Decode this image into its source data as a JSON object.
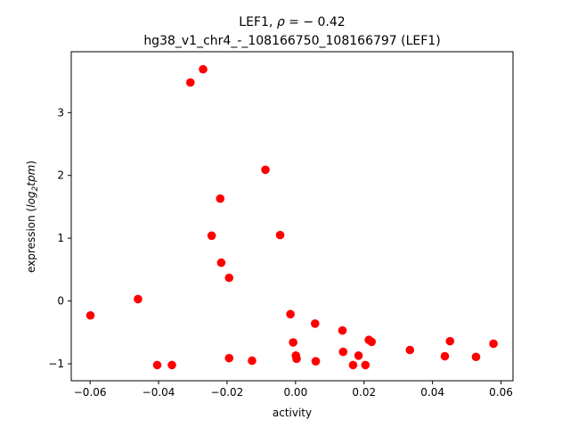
{
  "chart_data": {
    "type": "scatter",
    "title_line1_prefix": "LEF1, ",
    "title_line1_rho": "ρ",
    "title_line1_suffix": " = − 0.42",
    "title_line2": "hg38_v1_chr4_-_108166750_108166797 (LEF1)",
    "xlabel": "activity",
    "ylabel_prefix": "expression (",
    "ylabel_math": "log",
    "ylabel_sub": "2",
    "ylabel_math2": "tpm",
    "ylabel_suffix": ")",
    "xlim": [
      -0.0655,
      0.0635
    ],
    "ylim": [
      -1.27,
      3.97
    ],
    "xticks": [
      -0.06,
      -0.04,
      -0.02,
      0.0,
      0.02,
      0.04,
      0.06
    ],
    "xtick_labels": [
      "−0.06",
      "−0.04",
      "−0.02",
      "0.00",
      "0.02",
      "0.04",
      "0.06"
    ],
    "yticks": [
      -1,
      0,
      1,
      2,
      3
    ],
    "ytick_labels": [
      "−1",
      "0",
      "1",
      "2",
      "3"
    ],
    "grid": false,
    "marker_color": "#ff0000",
    "points": [
      {
        "x": -0.0599,
        "y": -0.23
      },
      {
        "x": -0.046,
        "y": 0.03
      },
      {
        "x": -0.0404,
        "y": -1.02
      },
      {
        "x": -0.0361,
        "y": -1.02
      },
      {
        "x": -0.0307,
        "y": 3.48
      },
      {
        "x": -0.027,
        "y": 3.69
      },
      {
        "x": -0.0245,
        "y": 1.04
      },
      {
        "x": -0.022,
        "y": 1.63
      },
      {
        "x": -0.0217,
        "y": 0.61
      },
      {
        "x": -0.0194,
        "y": 0.37
      },
      {
        "x": -0.0194,
        "y": -0.91
      },
      {
        "x": -0.0127,
        "y": -0.95
      },
      {
        "x": -0.0088,
        "y": 2.09
      },
      {
        "x": -0.0045,
        "y": 1.05
      },
      {
        "x": -0.0015,
        "y": -0.21
      },
      {
        "x": -0.0007,
        "y": -0.66
      },
      {
        "x": 0.0001,
        "y": -0.87
      },
      {
        "x": 0.0003,
        "y": -0.92
      },
      {
        "x": 0.0057,
        "y": -0.36
      },
      {
        "x": 0.0059,
        "y": -0.96
      },
      {
        "x": 0.0137,
        "y": -0.47
      },
      {
        "x": 0.0139,
        "y": -0.81
      },
      {
        "x": 0.0168,
        "y": -1.02
      },
      {
        "x": 0.0184,
        "y": -0.87
      },
      {
        "x": 0.0204,
        "y": -1.02
      },
      {
        "x": 0.0214,
        "y": -0.62
      },
      {
        "x": 0.0222,
        "y": -0.65
      },
      {
        "x": 0.0334,
        "y": -0.78
      },
      {
        "x": 0.0436,
        "y": -0.88
      },
      {
        "x": 0.0451,
        "y": -0.64
      },
      {
        "x": 0.0527,
        "y": -0.89
      },
      {
        "x": 0.0578,
        "y": -0.68
      }
    ]
  }
}
